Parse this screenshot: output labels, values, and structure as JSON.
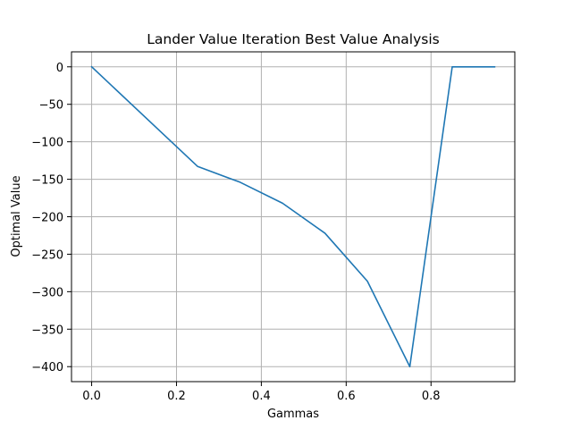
{
  "chart_data": {
    "type": "line",
    "title": "Lander Value Iteration Best Value Analysis",
    "xlabel": "Gammas",
    "ylabel": "Optimal Value",
    "x": [
      0.0,
      0.25,
      0.35,
      0.45,
      0.55,
      0.65,
      0.75,
      0.85,
      0.95
    ],
    "series": [
      {
        "values": [
          0,
          -133,
          -154,
          -182,
          -222,
          -286,
          -400,
          0,
          0
        ],
        "color": "#1f77b4"
      }
    ],
    "xlim": [
      -0.0475,
      0.9975
    ],
    "ylim": [
      -420,
      20
    ],
    "xticks": [
      0.0,
      0.2,
      0.4,
      0.6,
      0.8
    ],
    "xtick_labels": [
      "0.0",
      "0.2",
      "0.4",
      "0.6",
      "0.8"
    ],
    "yticks": [
      0,
      -50,
      -100,
      -150,
      -200,
      -250,
      -300,
      -350,
      -400
    ],
    "ytick_labels": [
      "0",
      "−50",
      "−100",
      "−150",
      "−200",
      "−250",
      "−300",
      "−350",
      "−400"
    ],
    "grid": true,
    "grid_color": "#b0b0b0"
  }
}
